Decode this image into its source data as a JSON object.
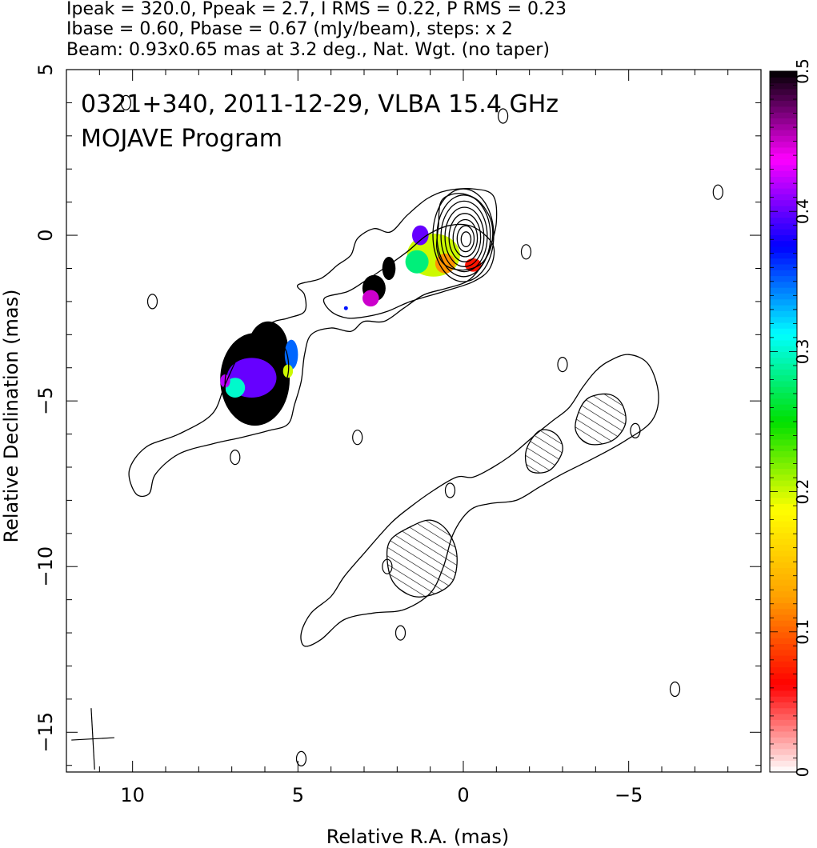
{
  "header": {
    "line1": "Ipeak = 320.0, Ppeak = 2.7, I RMS = 0.22, P RMS = 0.23",
    "line2": "Ibase = 0.60, Pbase = 0.67 (mJy/beam), steps: x 2",
    "line3": "Beam: 0.93x0.65 mas at 3.2 deg., Nat. Wgt. (no taper)"
  },
  "chart_data": {
    "type": "heatmap",
    "title": "0321+340, 2011-12-29, VLBA 15.4 GHz",
    "subtitle": "MOJAVE Program",
    "xlabel": "Relative R.A. (mas)",
    "ylabel": "Relative Declination (mas)",
    "xlim": [
      12,
      -9
    ],
    "ylim": [
      -16.2,
      5
    ],
    "x_ticks": [
      {
        "value": 10,
        "label": "10"
      },
      {
        "value": 5,
        "label": "5"
      },
      {
        "value": 0,
        "label": "0"
      },
      {
        "value": -5,
        "label": "−5"
      }
    ],
    "y_ticks": [
      {
        "value": 5,
        "label": "5"
      },
      {
        "value": 0,
        "label": "0"
      },
      {
        "value": -5,
        "label": "−5"
      },
      {
        "value": -10,
        "label": "−10"
      },
      {
        "value": -15,
        "label": "−15"
      }
    ],
    "colorbar": {
      "range": [
        0,
        0.5
      ],
      "ticks": [
        {
          "value": 0,
          "label": "0"
        },
        {
          "value": 0.1,
          "label": "0.1"
        },
        {
          "value": 0.2,
          "label": "0.2"
        },
        {
          "value": 0.3,
          "label": "0.3"
        },
        {
          "value": 0.4,
          "label": "0.4"
        },
        {
          "value": 0.5,
          "label": "0.5"
        }
      ],
      "colors": [
        "#ffffff",
        "#ff0000",
        "#ffa000",
        "#ffff00",
        "#00e000",
        "#00ffff",
        "#0000ff",
        "#ff00ff",
        "#000000"
      ]
    },
    "peak_position": [
      0.0,
      0.0
    ],
    "beam": {
      "major": 0.93,
      "minor": 0.65,
      "pa_deg": 3.2,
      "center": [
        11.2,
        -15.2
      ]
    },
    "contours": [
      {
        "name": "outer",
        "points": [
          [
            10.1,
            -7.1
          ],
          [
            9.6,
            -6.4
          ],
          [
            8.6,
            -6.0
          ],
          [
            7.6,
            -5.4
          ],
          [
            7.2,
            -4.5
          ],
          [
            6.7,
            -3.5
          ],
          [
            5.9,
            -2.7
          ],
          [
            5.3,
            -2.5
          ],
          [
            4.8,
            -2.3
          ],
          [
            4.8,
            -1.8
          ],
          [
            5.0,
            -1.5
          ],
          [
            4.3,
            -1.3
          ],
          [
            3.8,
            -0.9
          ],
          [
            3.4,
            -0.6
          ],
          [
            3.2,
            -0.1
          ],
          [
            2.7,
            0.2
          ],
          [
            2.2,
            0.1
          ],
          [
            1.7,
            0.6
          ],
          [
            1.1,
            1.1
          ],
          [
            0.5,
            1.35
          ],
          [
            -0.3,
            1.4
          ],
          [
            -0.9,
            1.2
          ],
          [
            -1.0,
            0.4
          ],
          [
            -0.8,
            -0.4
          ],
          [
            -0.5,
            -1.0
          ],
          [
            -0.1,
            -1.4
          ],
          [
            0.5,
            -1.6
          ],
          [
            1.2,
            -1.8
          ],
          [
            1.8,
            -2.2
          ],
          [
            2.4,
            -2.6
          ],
          [
            3.0,
            -2.6
          ],
          [
            3.4,
            -2.9
          ],
          [
            4.0,
            -2.8
          ],
          [
            4.6,
            -3.0
          ],
          [
            4.8,
            -3.6
          ],
          [
            4.9,
            -4.4
          ],
          [
            5.1,
            -5.1
          ],
          [
            5.3,
            -5.7
          ],
          [
            5.9,
            -5.9
          ],
          [
            6.7,
            -6.1
          ],
          [
            7.6,
            -6.3
          ],
          [
            8.6,
            -6.6
          ],
          [
            9.3,
            -7.2
          ],
          [
            9.5,
            -7.8
          ],
          [
            9.9,
            -7.8
          ]
        ]
      },
      {
        "name": "upper-jet",
        "points": [
          [
            4.2,
            -1.9
          ],
          [
            3.5,
            -1.7
          ],
          [
            3.0,
            -1.4
          ],
          [
            2.4,
            -1.0
          ],
          [
            1.7,
            -0.5
          ],
          [
            1.1,
            0.0
          ],
          [
            0.4,
            0.3
          ],
          [
            -0.3,
            0.25
          ],
          [
            -0.9,
            -0.3
          ],
          [
            -0.8,
            -1.0
          ],
          [
            -0.3,
            -1.4
          ],
          [
            0.6,
            -1.7
          ],
          [
            1.6,
            -2.0
          ],
          [
            2.3,
            -2.3
          ],
          [
            2.9,
            -2.45
          ],
          [
            3.5,
            -2.5
          ],
          [
            4.0,
            -2.3
          ]
        ]
      },
      {
        "name": "core",
        "points": [
          [
            0.75,
            0.3
          ],
          [
            0.7,
            0.95
          ],
          [
            0.45,
            1.2
          ],
          [
            0.0,
            1.25
          ],
          [
            -0.5,
            1.0
          ],
          [
            -0.85,
            0.4
          ],
          [
            -0.85,
            -0.3
          ],
          [
            -0.55,
            -0.85
          ],
          [
            0.0,
            -1.05
          ],
          [
            0.55,
            -0.9
          ],
          [
            0.8,
            -0.4
          ]
        ]
      },
      {
        "name": "knot-a",
        "points": [
          [
            7.2,
            -4.7
          ],
          [
            7.1,
            -3.9
          ],
          [
            6.6,
            -3.4
          ],
          [
            5.9,
            -3.2
          ],
          [
            5.4,
            -3.4
          ],
          [
            5.3,
            -4.2
          ],
          [
            5.7,
            -4.9
          ],
          [
            6.4,
            -5.3
          ],
          [
            7.0,
            -5.3
          ]
        ]
      },
      {
        "name": "lower-jet",
        "points": [
          [
            4.9,
            -12.0
          ],
          [
            4.6,
            -11.4
          ],
          [
            4.0,
            -10.9
          ],
          [
            3.6,
            -10.3
          ],
          [
            3.0,
            -9.6
          ],
          [
            2.2,
            -8.7
          ],
          [
            1.6,
            -8.2
          ],
          [
            0.9,
            -7.7
          ],
          [
            0.2,
            -7.3
          ],
          [
            -0.3,
            -7.3
          ],
          [
            -0.9,
            -7.0
          ],
          [
            -1.5,
            -6.6
          ],
          [
            -2.2,
            -6.0
          ],
          [
            -2.7,
            -5.6
          ],
          [
            -3.2,
            -5.2
          ],
          [
            -3.6,
            -4.6
          ],
          [
            -4.0,
            -4.1
          ],
          [
            -4.4,
            -3.8
          ],
          [
            -5.0,
            -3.6
          ],
          [
            -5.6,
            -3.9
          ],
          [
            -5.9,
            -4.8
          ],
          [
            -5.7,
            -5.6
          ],
          [
            -4.9,
            -6.2
          ],
          [
            -4.0,
            -6.7
          ],
          [
            -3.0,
            -7.2
          ],
          [
            -2.3,
            -7.6
          ],
          [
            -1.6,
            -8.0
          ],
          [
            -0.8,
            -8.1
          ],
          [
            -0.2,
            -8.3
          ],
          [
            0.3,
            -9.0
          ],
          [
            0.6,
            -10.0
          ],
          [
            1.0,
            -10.8
          ],
          [
            1.8,
            -11.3
          ],
          [
            2.7,
            -11.4
          ],
          [
            3.6,
            -11.6
          ],
          [
            4.3,
            -12.2
          ],
          [
            4.8,
            -12.4
          ]
        ]
      },
      {
        "name": "pol-lower",
        "points": [
          [
            2.2,
            -9.2
          ],
          [
            1.6,
            -8.8
          ],
          [
            1.0,
            -8.6
          ],
          [
            0.5,
            -8.9
          ],
          [
            0.2,
            -9.6
          ],
          [
            0.3,
            -10.4
          ],
          [
            0.8,
            -10.8
          ],
          [
            1.5,
            -10.9
          ],
          [
            2.1,
            -10.5
          ],
          [
            2.3,
            -9.8
          ]
        ]
      },
      {
        "name": "pol-upper",
        "points": [
          [
            -3.5,
            -5.3
          ],
          [
            -3.8,
            -4.9
          ],
          [
            -4.4,
            -4.8
          ],
          [
            -4.8,
            -5.1
          ],
          [
            -4.9,
            -5.7
          ],
          [
            -4.5,
            -6.2
          ],
          [
            -3.8,
            -6.3
          ],
          [
            -3.4,
            -5.9
          ]
        ]
      },
      {
        "name": "pol-mid",
        "points": [
          [
            -1.9,
            -6.5
          ],
          [
            -2.3,
            -5.9
          ],
          [
            -2.8,
            -6.0
          ],
          [
            -3.0,
            -6.5
          ],
          [
            -2.6,
            -7.1
          ],
          [
            -2.0,
            -7.1
          ]
        ]
      }
    ],
    "islands": [
      [
        6.9,
        -6.7
      ],
      [
        9.4,
        -2.0
      ],
      [
        3.2,
        -6.1
      ],
      [
        1.9,
        -12.0
      ],
      [
        -1.9,
        -0.5
      ],
      [
        -7.7,
        1.3
      ],
      [
        -6.4,
        -13.7
      ],
      [
        4.9,
        -15.8
      ],
      [
        -5.2,
        -5.9
      ],
      [
        2.3,
        -10.0
      ],
      [
        0.4,
        -7.7
      ],
      [
        -3.0,
        -3.9
      ],
      [
        10.2,
        4.0
      ],
      [
        -1.2,
        3.6
      ]
    ],
    "fractional_pol_regions": [
      {
        "x": 0.9,
        "y": -0.6,
        "rx": 0.8,
        "ry": 0.65,
        "value": 0.2
      },
      {
        "x": 0.55,
        "y": -0.85,
        "rx": 0.3,
        "ry": 0.3,
        "value": 0.12
      },
      {
        "x": -0.3,
        "y": -0.9,
        "rx": 0.25,
        "ry": 0.2,
        "value": 0.07
      },
      {
        "x": 1.4,
        "y": -0.8,
        "rx": 0.35,
        "ry": 0.35,
        "value": 0.28
      },
      {
        "x": 1.3,
        "y": 0.0,
        "rx": 0.25,
        "ry": 0.3,
        "value": 0.4
      },
      {
        "x": 2.7,
        "y": -1.6,
        "rx": 0.35,
        "ry": 0.4,
        "value": 0.5
      },
      {
        "x": 2.25,
        "y": -1.0,
        "rx": 0.2,
        "ry": 0.35,
        "value": 0.5
      },
      {
        "x": 2.8,
        "y": -1.9,
        "rx": 0.25,
        "ry": 0.25,
        "value": 0.45
      },
      {
        "x": 6.3,
        "y": -4.35,
        "rx": 1.05,
        "ry": 1.4,
        "value": 0.5
      },
      {
        "x": 5.9,
        "y": -3.4,
        "rx": 0.6,
        "ry": 0.8,
        "value": 0.5
      },
      {
        "x": 6.4,
        "y": -4.3,
        "rx": 0.75,
        "ry": 0.6,
        "value": 0.4
      },
      {
        "x": 6.9,
        "y": -4.6,
        "rx": 0.3,
        "ry": 0.3,
        "value": 0.3
      },
      {
        "x": 5.2,
        "y": -3.6,
        "rx": 0.2,
        "ry": 0.45,
        "value": 0.35
      },
      {
        "x": 5.3,
        "y": -4.1,
        "rx": 0.15,
        "ry": 0.2,
        "value": 0.2
      },
      {
        "x": 7.2,
        "y": -4.4,
        "rx": 0.15,
        "ry": 0.2,
        "value": 0.42
      },
      {
        "x": 3.55,
        "y": -2.2,
        "rx": 0.06,
        "ry": 0.06,
        "value": 0.37
      }
    ]
  }
}
